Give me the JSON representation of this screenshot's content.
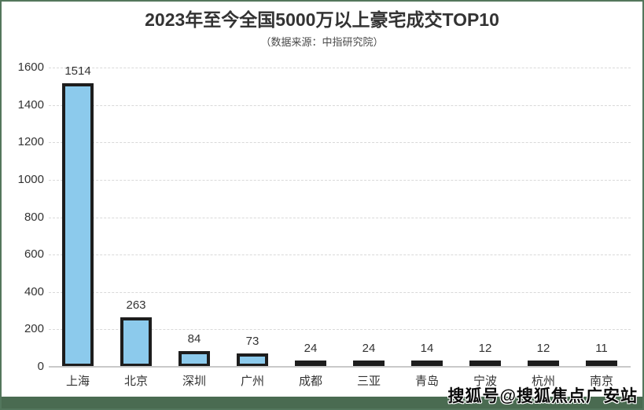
{
  "page": {
    "title": "2023年至今全国5000万以上豪宅成交TOP10",
    "subtitle": "（数据来源：中指研究院）",
    "watermark": "搜狐号@搜狐焦点广安站",
    "colors": {
      "outer_border_green": "#53765c",
      "footer_band_green": "#4a6b51",
      "bar_fill": "#8ccaec",
      "bar_border": "#1d1d1d",
      "title_text": "#333333",
      "axis_text": "#333333",
      "gridline": "#d9d9d9",
      "baseline": "#c9c9c9"
    }
  },
  "chart_data": {
    "type": "bar",
    "title": "2023年至今全国5000万以上豪宅成交TOP10",
    "subtitle": "（数据来源：中指研究院）",
    "categories": [
      "上海",
      "北京",
      "深圳",
      "广州",
      "成都",
      "三亚",
      "青岛",
      "宁波",
      "杭州",
      "南京"
    ],
    "values": [
      1514,
      263,
      84,
      73,
      24,
      24,
      14,
      12,
      12,
      11
    ],
    "xlabel": "",
    "ylabel": "",
    "ylim": [
      0,
      1600
    ],
    "yticks": [
      0,
      200,
      400,
      600,
      800,
      1000,
      1200,
      1400,
      1600
    ],
    "grid": "horizontal-dashed",
    "legend": "none",
    "value_labels": true
  }
}
